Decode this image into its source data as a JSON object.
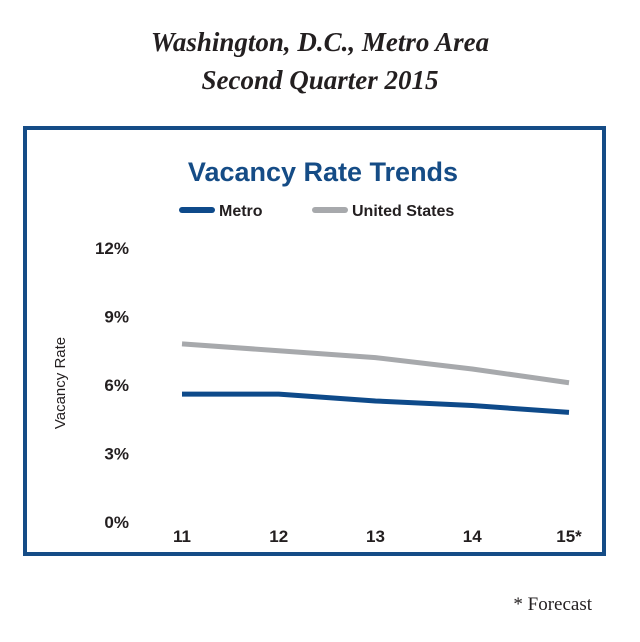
{
  "header": {
    "title_line1": "Washington, D.C., Metro Area",
    "title_line2": "Second Quarter 2015"
  },
  "footnote": "* Forecast",
  "colors": {
    "metro": "#0e4a8a",
    "united_states": "#a7a9ac",
    "frame": "#154c86",
    "title": "#154c86"
  },
  "chart_data": {
    "type": "line",
    "title": "Vacancy Rate Trends",
    "ylabel": "Vacancy Rate",
    "xlabel": "",
    "categories": [
      "11",
      "12",
      "13",
      "14",
      "15*"
    ],
    "y_ticks": [
      "0%",
      "3%",
      "6%",
      "9%",
      "12%"
    ],
    "ylim": [
      0,
      12
    ],
    "legend_position": "top",
    "grid": false,
    "series": [
      {
        "name": "Metro",
        "values": [
          5.6,
          5.6,
          5.3,
          5.1,
          4.8
        ]
      },
      {
        "name": "United States",
        "values": [
          7.8,
          7.5,
          7.2,
          6.7,
          6.1
        ]
      }
    ]
  }
}
